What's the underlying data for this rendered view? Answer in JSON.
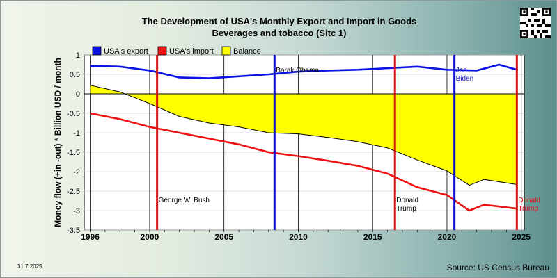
{
  "header": {
    "title_line1": "The Development of USA's Monthly Export and Import in Goods",
    "title_line2": "Beverages and tobacco (Sitc 1)"
  },
  "footer": {
    "date": "31.7.2025",
    "source": "Source: US Census Bureau"
  },
  "colors": {
    "export": "#0a12e6",
    "import": "#ee1111",
    "balance": "#ffff00",
    "bush": "#dd1111",
    "obama": "#1111cc",
    "trump": "#dd1111",
    "biden": "#1111cc"
  },
  "chart_data": {
    "type": "line",
    "title": "The Development of USA's Monthly Export and Import in Goods Beverages and tobacco (Sitc 1)",
    "xlabel": "",
    "ylabel": "Money flow (+in -out) * Billion USD / month",
    "xlim": [
      1995.6,
      2025.2
    ],
    "ylim": [
      -3.5,
      1
    ],
    "x_ticks": [
      1996,
      2000,
      2005,
      2010,
      2015,
      2020,
      2025
    ],
    "y_ticks": [
      1,
      0.5,
      0,
      -0.5,
      -1,
      -1.5,
      -2,
      -2.5,
      -3,
      -3.5
    ],
    "y_tick_labels": [
      "1",
      "0.5",
      "0",
      "-0.5",
      "-1",
      "-1.5",
      "-2",
      "-2.5",
      "-3",
      "-3.5"
    ],
    "grid": true,
    "legend_position": "top-left",
    "series": [
      {
        "name": "USA's export",
        "x": [
          1996,
          1998,
          2000,
          2002,
          2004,
          2006,
          2008,
          2010,
          2012,
          2014,
          2016,
          2018,
          2020,
          2022,
          2023.5,
          2024.7
        ],
        "values": [
          0.72,
          0.7,
          0.6,
          0.42,
          0.4,
          0.45,
          0.5,
          0.57,
          0.6,
          0.62,
          0.66,
          0.7,
          0.62,
          0.6,
          0.75,
          0.62
        ]
      },
      {
        "name": "USA's import",
        "x": [
          1996,
          1998,
          2000,
          2002,
          2004,
          2006,
          2008,
          2010,
          2012,
          2014,
          2016,
          2018,
          2020,
          2021.5,
          2022.5,
          2024.7
        ],
        "values": [
          -0.5,
          -0.65,
          -0.85,
          -1.0,
          -1.15,
          -1.3,
          -1.5,
          -1.6,
          -1.72,
          -1.85,
          -2.05,
          -2.4,
          -2.6,
          -3.0,
          -2.85,
          -2.95
        ]
      },
      {
        "name": "Balance",
        "x": [
          1996,
          1998,
          2000,
          2002,
          2004,
          2006,
          2008,
          2010,
          2012,
          2014,
          2016,
          2018,
          2020,
          2021.5,
          2022.5,
          2024.7
        ],
        "values": [
          0.22,
          0.05,
          -0.25,
          -0.58,
          -0.75,
          -0.85,
          -1.0,
          -1.03,
          -1.12,
          -1.23,
          -1.39,
          -1.7,
          -1.98,
          -2.35,
          -2.2,
          -2.33
        ]
      }
    ],
    "events": [
      {
        "label": "George W. Bush",
        "x": 2000.5
      },
      {
        "label": "Barak Obama",
        "x": 2008.4
      },
      {
        "label": "Donald Trump",
        "x": 2016.5
      },
      {
        "label": "Joe Biden",
        "x": 2020.5
      },
      {
        "label": "Donald Trump",
        "x": 2024.7
      }
    ]
  }
}
